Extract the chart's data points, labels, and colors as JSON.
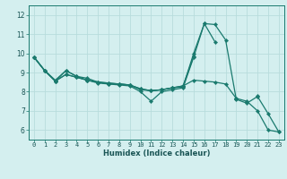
{
  "xlabel": "Humidex (Indice chaleur)",
  "background_color": "#d4efef",
  "grid_color": "#b8dcdc",
  "line_color": "#1a7a6e",
  "xlim": [
    -0.5,
    23.5
  ],
  "ylim": [
    5.5,
    12.5
  ],
  "ytick_values": [
    6,
    7,
    8,
    9,
    10,
    11,
    12
  ],
  "xtick_labels": [
    "0",
    "1",
    "2",
    "3",
    "4",
    "5",
    "6",
    "7",
    "8",
    "9",
    "10",
    "11",
    "12",
    "13",
    "14",
    "15",
    "16",
    "17",
    "18",
    "19",
    "20",
    "21",
    "22",
    "23"
  ],
  "lines": [
    {
      "x": [
        0,
        1,
        2,
        3,
        4,
        5,
        6,
        7,
        8,
        9,
        10,
        11,
        12,
        13,
        14,
        15,
        16,
        17,
        18,
        19,
        20,
        21,
        22,
        23
      ],
      "y": [
        9.8,
        9.1,
        8.6,
        9.1,
        8.8,
        8.7,
        8.5,
        8.4,
        8.35,
        8.3,
        8.0,
        7.5,
        8.0,
        8.1,
        8.2,
        9.8,
        11.55,
        11.5,
        10.7,
        7.6,
        7.4,
        7.75,
        6.85,
        5.9
      ]
    },
    {
      "x": [
        0,
        1,
        2,
        3,
        4,
        5,
        6,
        7,
        8,
        9,
        10,
        11,
        12,
        13,
        14,
        15,
        16,
        17,
        18,
        19,
        20,
        21,
        22,
        23
      ],
      "y": [
        9.8,
        9.1,
        8.55,
        9.1,
        8.8,
        8.6,
        8.45,
        8.4,
        8.4,
        8.35,
        8.1,
        8.05,
        8.1,
        8.2,
        8.25,
        10.0,
        11.55,
        10.6,
        null,
        7.65,
        null,
        null,
        null,
        null
      ]
    },
    {
      "x": [
        0,
        1,
        2,
        3,
        4,
        5,
        6,
        7,
        8,
        9,
        10,
        11,
        12,
        13,
        14,
        15,
        16,
        17,
        18,
        19,
        20,
        21,
        22,
        23
      ],
      "y": [
        9.8,
        9.1,
        8.55,
        8.9,
        8.75,
        8.6,
        8.5,
        8.45,
        8.4,
        8.35,
        8.15,
        8.05,
        8.1,
        8.2,
        8.3,
        9.85,
        null,
        null,
        null,
        7.65,
        null,
        7.8,
        null,
        null
      ]
    },
    {
      "x": [
        0,
        1,
        2,
        3,
        4,
        5,
        6,
        7,
        8,
        9,
        10,
        11,
        12,
        13,
        14,
        15,
        16,
        17,
        18,
        19,
        20,
        21,
        22,
        23
      ],
      "y": [
        9.8,
        9.1,
        8.55,
        8.9,
        8.75,
        8.6,
        8.5,
        8.45,
        8.4,
        8.35,
        8.15,
        8.05,
        8.1,
        8.2,
        8.3,
        8.6,
        8.55,
        8.5,
        8.4,
        7.65,
        7.5,
        7.0,
        6.0,
        5.9
      ]
    }
  ],
  "marker": "D",
  "markersize": 2.2,
  "linewidth": 0.9,
  "xlabel_fontsize": 6.0,
  "tick_fontsize": 5.0,
  "ytick_fontsize": 5.5
}
